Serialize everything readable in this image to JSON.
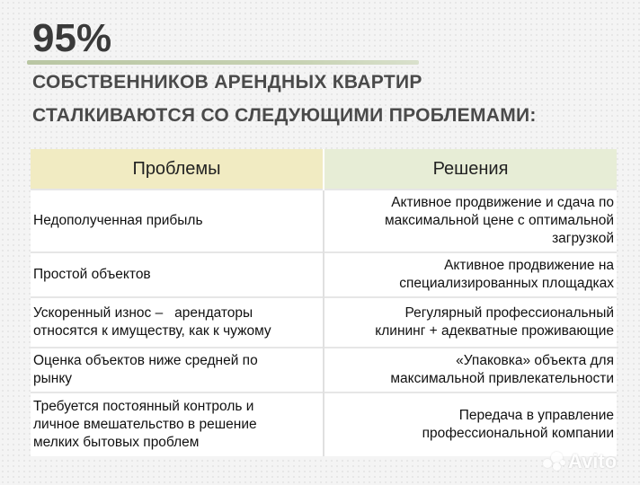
{
  "header": {
    "percent": "95%",
    "line1": "СОБСТВЕННИКОВ АРЕНДНЫХ КВАРТИР",
    "line2": "СТАЛКИВАЮТСЯ СО СЛЕДУЮЩИМИ ПРОБЛЕМАМИ:"
  },
  "table": {
    "col_problems": "Проблемы",
    "col_solutions": "Решения",
    "rows": [
      {
        "problem": [
          "Недополученная прибыль"
        ],
        "solution": [
          "Активное продвижение и сдача по",
          "максимальной цене с оптимальной",
          "загрузкой"
        ]
      },
      {
        "problem": [
          "Простой объектов"
        ],
        "solution": [
          "Активное продвижение на",
          "специализированных площадках"
        ]
      },
      {
        "problem": [
          "Ускоренный износ –   арендаторы",
          "относятся к имуществу, как к чужому"
        ],
        "solution": [
          "Регулярный профессиональный",
          "клининг + адекватные проживающие"
        ]
      },
      {
        "problem": [
          "Оценка объектов ниже средней по",
          "рынку"
        ],
        "solution": [
          "«Упаковка» объекта для",
          "максимальной привлекательности"
        ]
      },
      {
        "problem": [
          "Требуется постоянный контроль и",
          "личное вмешательство в решение",
          "мелких бытовых проблем"
        ],
        "solution": [
          "Передача в управление",
          "профессиональной компании"
        ]
      }
    ]
  },
  "watermark": {
    "text": "Avito"
  },
  "colors": {
    "header_problems_bg": "#f1ebc2",
    "header_solutions_bg": "#e7edd6",
    "accent_rule": "#c7d2b3"
  }
}
